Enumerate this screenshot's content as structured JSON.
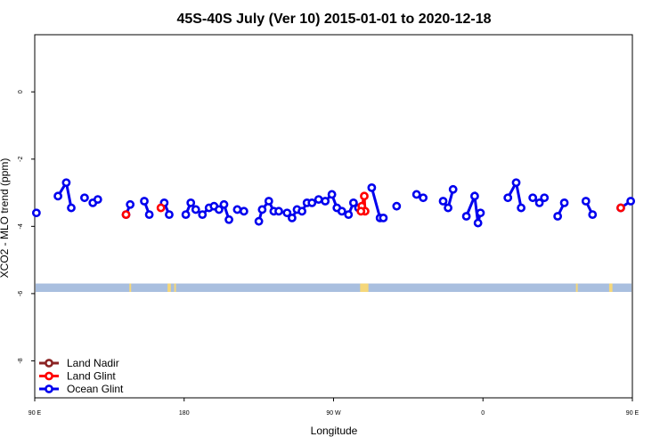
{
  "chart_data": {
    "type": "line",
    "title": "45S-40S July (Ver 10)   2015-01-01 to 2020-12-18",
    "xlabel": "Longitude",
    "ylabel": "XCO2 - MLO trend (ppm)",
    "xlim": [
      90,
      450
    ],
    "ylim": [
      -9.1,
      1.7
    ],
    "x_ticks": [
      {
        "value": 90,
        "label": "90 E"
      },
      {
        "value": 180,
        "label": "180"
      },
      {
        "value": 270,
        "label": "90 W"
      },
      {
        "value": 360,
        "label": "0"
      },
      {
        "value": 450,
        "label": "90 E"
      }
    ],
    "y_ticks": [
      {
        "value": 0,
        "label": "0"
      },
      {
        "value": -2,
        "label": "-2"
      },
      {
        "value": -4,
        "label": "-4"
      },
      {
        "value": -6,
        "label": "-6"
      },
      {
        "value": -8,
        "label": "-8"
      }
    ],
    "land_strip": {
      "y_top": -5.7,
      "y_bottom": -5.95,
      "ocean_color": "#a9bfdf",
      "land_color": "#f5d77a",
      "land_x": [
        [
          147,
          148
        ],
        [
          170,
          172
        ],
        [
          174,
          175
        ],
        [
          286,
          291
        ],
        [
          416,
          417
        ],
        [
          436,
          438
        ]
      ]
    },
    "legend": {
      "position": "bottom-left"
    },
    "series": [
      {
        "name": "Land Nadir",
        "color": "#8b2323",
        "segments": []
      },
      {
        "name": "Land Glint",
        "color": "#ff0000",
        "segments": [
          [
            [
              145,
              -3.65
            ]
          ],
          [
            [
              166,
              -3.45
            ]
          ],
          [
            [
              287,
              -3.4
            ],
            [
              288.5,
              -3.1
            ],
            [
              289,
              -3.55
            ]
          ],
          [
            [
              286.5,
              -3.55
            ]
          ],
          [
            [
              443,
              -3.45
            ]
          ]
        ]
      },
      {
        "name": "Ocean Glint",
        "color": "#0000ee",
        "segments": [
          [
            [
              91,
              -3.6
            ]
          ],
          [
            [
              104,
              -3.1
            ],
            [
              109,
              -2.7
            ],
            [
              112,
              -3.45
            ]
          ],
          [
            [
              120,
              -3.15
            ]
          ],
          [
            [
              125,
              -3.3
            ],
            [
              128,
              -3.2
            ]
          ],
          [
            [
              145,
              -3.65
            ],
            [
              147.5,
              -3.35
            ]
          ],
          [
            [
              156,
              -3.25
            ],
            [
              159,
              -3.65
            ]
          ],
          [
            [
              168,
              -3.3
            ],
            [
              171,
              -3.65
            ]
          ],
          [
            [
              181,
              -3.65
            ],
            [
              184,
              -3.3
            ],
            [
              187,
              -3.5
            ]
          ],
          [
            [
              191,
              -3.65
            ],
            [
              195,
              -3.45
            ],
            [
              198,
              -3.4
            ],
            [
              201,
              -3.5
            ],
            [
              204,
              -3.35
            ],
            [
              207,
              -3.8
            ]
          ],
          [
            [
              212,
              -3.5
            ],
            [
              216,
              -3.55
            ]
          ],
          [
            [
              225,
              -3.85
            ],
            [
              227,
              -3.5
            ],
            [
              231,
              -3.25
            ],
            [
              234,
              -3.55
            ],
            [
              237,
              -3.55
            ]
          ],
          [
            [
              242,
              -3.6
            ],
            [
              245,
              -3.75
            ],
            [
              248,
              -3.5
            ],
            [
              251,
              -3.55
            ],
            [
              254,
              -3.3
            ],
            [
              257,
              -3.3
            ],
            [
              261,
              -3.2
            ],
            [
              265,
              -3.25
            ],
            [
              269,
              -3.05
            ],
            [
              272,
              -3.45
            ],
            [
              275,
              -3.55
            ],
            [
              279,
              -3.65
            ],
            [
              282,
              -3.3
            ],
            [
              285,
              -3.45
            ]
          ],
          [
            [
              293,
              -2.85
            ],
            [
              298,
              -3.75
            ],
            [
              300,
              -3.75
            ]
          ],
          [
            [
              308,
              -3.4
            ]
          ],
          [
            [
              320,
              -3.05
            ],
            [
              324,
              -3.15
            ]
          ],
          [
            [
              336,
              -3.25
            ],
            [
              339,
              -3.45
            ],
            [
              342,
              -2.9
            ]
          ],
          [
            [
              350,
              -3.7
            ],
            [
              355,
              -3.1
            ],
            [
              357,
              -3.9
            ],
            [
              358.5,
              -3.6
            ]
          ],
          [
            [
              375,
              -3.15
            ],
            [
              380,
              -2.7
            ],
            [
              383,
              -3.45
            ]
          ],
          [
            [
              390,
              -3.15
            ],
            [
              394,
              -3.3
            ],
            [
              397,
              -3.15
            ]
          ],
          [
            [
              405,
              -3.7
            ],
            [
              409,
              -3.3
            ]
          ],
          [
            [
              422,
              -3.25
            ],
            [
              426,
              -3.65
            ]
          ],
          [
            [
              443,
              -3.45
            ],
            [
              449,
              -3.25
            ]
          ]
        ]
      }
    ]
  }
}
